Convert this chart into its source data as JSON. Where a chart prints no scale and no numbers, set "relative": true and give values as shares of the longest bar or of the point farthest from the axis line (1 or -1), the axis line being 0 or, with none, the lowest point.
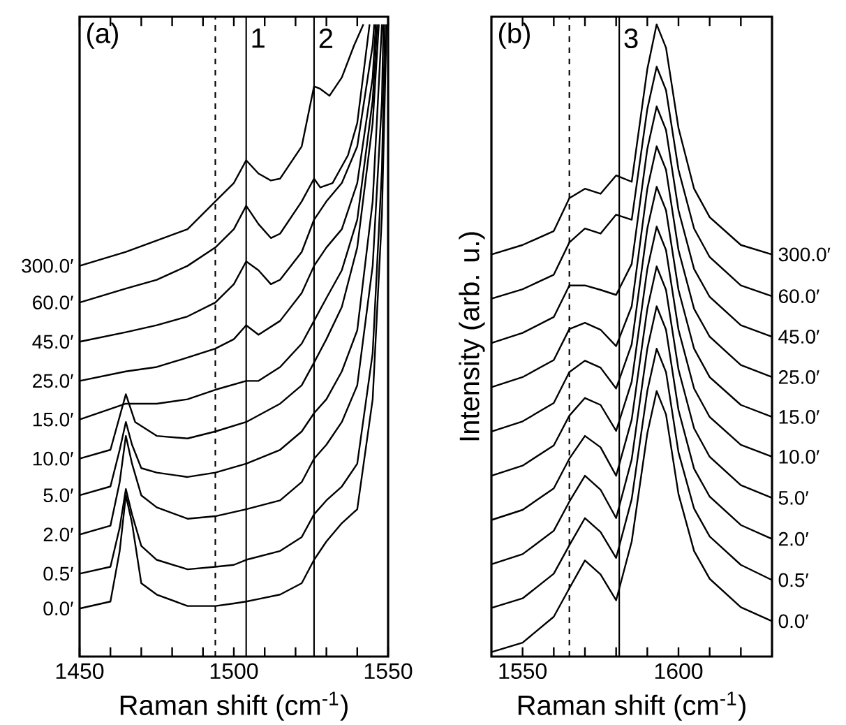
{
  "chart_data": [
    {
      "type": "line",
      "relative": true,
      "xlabel": "Raman shift (cm$^{-1}$)",
      "xlim": [
        1450,
        1550
      ],
      "xticks": [
        1450,
        {
          "value": 1460,
          "label": null
        },
        {
          "value": 1470,
          "label": null
        },
        {
          "value": 1480,
          "label": null
        },
        {
          "value": 1490,
          "label": null
        },
        1500,
        {
          "value": 1510,
          "label": null
        },
        {
          "value": 1520,
          "label": null
        },
        {
          "value": 1530,
          "label": null
        },
        {
          "value": 1540,
          "label": null
        },
        1550
      ],
      "annotations": [
        "(a)",
        {
          "text": "1",
          "x": 1504,
          "y": 1
        },
        {
          "text": "2",
          "x": 1526,
          "y": 1
        }
      ],
      "ref_lines": [
        {
          "axis": "x",
          "value": 1494,
          "line_style": "dashed"
        },
        {
          "axis": "x",
          "value": 1504
        },
        {
          "axis": "x",
          "value": 1526
        }
      ],
      "series": [
        {
          "name": "0.0′",
          "color": "#000000",
          "x": [
            1450,
            1460,
            1463,
            1465,
            1467,
            1470,
            1475,
            1485,
            1494,
            1500,
            1504,
            1508,
            1515,
            1522,
            1526,
            1530,
            1535,
            1540,
            1545,
            1548,
            1549.5
          ],
          "values": [
            0.076,
            0.087,
            0.167,
            0.255,
            0.211,
            0.116,
            0.098,
            0.08,
            0.08,
            0.084,
            0.087,
            0.091,
            0.098,
            0.116,
            0.153,
            0.182,
            0.211,
            0.233,
            0.407,
            0.698,
            1
          ]
        },
        {
          "name": "0.5′",
          "color": "#000000",
          "x": [
            1450,
            1460,
            1463,
            1465,
            1467,
            1470,
            1475,
            1485,
            1494,
            1500,
            1504,
            1515,
            1522,
            1526,
            1530,
            1535,
            1540,
            1545,
            1548,
            1549
          ],
          "values": [
            0.131,
            0.142,
            0.204,
            0.265,
            0.225,
            0.175,
            0.153,
            0.138,
            0.142,
            0.145,
            0.153,
            0.167,
            0.189,
            0.225,
            0.247,
            0.269,
            0.305,
            0.48,
            0.771,
            1
          ]
        },
        {
          "name": "2.0′",
          "color": "#000000",
          "x": [
            1450,
            1460,
            1463,
            1465,
            1467,
            1470,
            1475,
            1485,
            1494,
            1504,
            1515,
            1522,
            1526,
            1530,
            1535,
            1540,
            1545,
            1548,
            1548.5
          ],
          "values": [
            0.193,
            0.207,
            0.276,
            0.349,
            0.305,
            0.255,
            0.236,
            0.218,
            0.222,
            0.233,
            0.247,
            0.276,
            0.313,
            0.335,
            0.371,
            0.429,
            0.618,
            0.88,
            1
          ]
        },
        {
          "name": "5.0′",
          "color": "#000000",
          "x": [
            1450,
            1460,
            1463,
            1465,
            1467,
            1470,
            1475,
            1485,
            1494,
            1504,
            1515,
            1522,
            1526,
            1530,
            1535,
            1540,
            1545,
            1548
          ],
          "values": [
            0.255,
            0.269,
            0.327,
            0.371,
            0.335,
            0.298,
            0.291,
            0.284,
            0.291,
            0.305,
            0.327,
            0.356,
            0.385,
            0.407,
            0.451,
            0.516,
            0.72,
            1
          ]
        },
        {
          "name": "10.0′",
          "color": "#000000",
          "x": [
            1450,
            1460,
            1465,
            1468,
            1475,
            1485,
            1494,
            1504,
            1515,
            1522,
            1526,
            1530,
            1535,
            1540,
            1545,
            1547
          ],
          "values": [
            0.313,
            0.327,
            0.415,
            0.371,
            0.349,
            0.345,
            0.356,
            0.371,
            0.4,
            0.429,
            0.465,
            0.502,
            0.553,
            0.647,
            0.844,
            1
          ]
        },
        {
          "name": "15.0′",
          "color": "#000000",
          "x": [
            1450,
            1465,
            1475,
            1485,
            1494,
            1504,
            1508,
            1515,
            1522,
            1526,
            1530,
            1535,
            1540,
            1545,
            1546.5
          ],
          "values": [
            0.375,
            0.4,
            0.4,
            0.407,
            0.422,
            0.436,
            0.436,
            0.458,
            0.495,
            0.531,
            0.567,
            0.611,
            0.691,
            0.88,
            1
          ]
        },
        {
          "name": "25.0′",
          "color": "#000000",
          "x": [
            1450,
            1465,
            1475,
            1485,
            1494,
            1500,
            1504,
            1508,
            1515,
            1522,
            1526,
            1530,
            1535,
            1540,
            1545,
            1546
          ],
          "values": [
            0.436,
            0.451,
            0.458,
            0.473,
            0.487,
            0.502,
            0.524,
            0.509,
            0.531,
            0.575,
            0.618,
            0.647,
            0.676,
            0.749,
            0.916,
            1
          ]
        },
        {
          "name": "45.0′",
          "color": "#000000",
          "x": [
            1450,
            1465,
            1475,
            1485,
            1494,
            1500,
            1504,
            1508,
            1512,
            1515,
            1522,
            1526,
            1530,
            1535,
            1540,
            1545,
            1545.5
          ],
          "values": [
            0.498,
            0.513,
            0.524,
            0.538,
            0.56,
            0.589,
            0.625,
            0.611,
            0.589,
            0.596,
            0.64,
            0.691,
            0.72,
            0.749,
            0.807,
            0.967,
            1
          ]
        },
        {
          "name": "60.0′",
          "color": "#000000",
          "x": [
            1450,
            1465,
            1475,
            1485,
            1494,
            1500,
            1504,
            1508,
            1512,
            1515,
            1522,
            1526,
            1528,
            1532,
            1537,
            1540,
            1544
          ],
          "values": [
            0.56,
            0.582,
            0.596,
            0.618,
            0.647,
            0.676,
            0.713,
            0.684,
            0.662,
            0.669,
            0.72,
            0.756,
            0.742,
            0.749,
            0.793,
            0.844,
            1
          ]
        },
        {
          "name": "300.0′",
          "color": "#000000",
          "x": [
            1450,
            1465,
            1475,
            1485,
            1494,
            1500,
            1504,
            1508,
            1512,
            1515,
            1522,
            1526,
            1528,
            1531,
            1535,
            1539,
            1542
          ],
          "values": [
            0.618,
            0.64,
            0.658,
            0.676,
            0.72,
            0.749,
            0.785,
            0.764,
            0.753,
            0.756,
            0.807,
            0.902,
            0.898,
            0.887,
            0.916,
            0.967,
            1
          ]
        }
      ]
    },
    {
      "type": "line",
      "relative": true,
      "xlabel": "Raman shift (cm$^{-1}$)",
      "ylabel": "Intensity (arb. u.)",
      "xlim": [
        1540,
        1630
      ],
      "xticks": [
        1550,
        {
          "value": 1560,
          "label": null
        },
        {
          "value": 1570,
          "label": null
        },
        {
          "value": 1580,
          "label": null
        },
        {
          "value": 1590,
          "label": null
        },
        1600,
        {
          "value": 1610,
          "label": null
        },
        {
          "value": 1620,
          "label": null
        }
      ],
      "annotations": [
        "(b)",
        {
          "text": "3",
          "x": 1581,
          "y": 1
        }
      ],
      "ref_lines": [
        {
          "axis": "x",
          "value": 1565,
          "line_style": "dashed"
        },
        {
          "axis": "x",
          "value": 1581
        }
      ],
      "series": [
        {
          "name": "0.0′",
          "color": "#000000",
          "x": [
            1540,
            1550,
            1560,
            1565,
            1570,
            1575,
            1580,
            1585,
            1590,
            1593,
            1596,
            1600,
            1605,
            1610,
            1620,
            1630
          ],
          "values": [
            0.007,
            0.022,
            0.063,
            0.108,
            0.152,
            0.13,
            0.089,
            0.182,
            0.353,
            0.42,
            0.383,
            0.257,
            0.167,
            0.123,
            0.078,
            0.056
          ]
        },
        {
          "name": "0.5′",
          "color": "#000000",
          "x": [
            1540,
            1550,
            1560,
            1565,
            1570,
            1575,
            1580,
            1585,
            1590,
            1593,
            1596,
            1600,
            1605,
            1610,
            1620,
            1630
          ],
          "values": [
            0.077,
            0.092,
            0.131,
            0.176,
            0.219,
            0.197,
            0.156,
            0.249,
            0.42,
            0.487,
            0.45,
            0.323,
            0.234,
            0.19,
            0.145,
            0.121
          ]
        },
        {
          "name": "2.0′",
          "color": "#000000",
          "x": [
            1540,
            1550,
            1560,
            1565,
            1570,
            1575,
            1580,
            1585,
            1590,
            1593,
            1596,
            1600,
            1605,
            1610,
            1620,
            1630
          ],
          "values": [
            0.146,
            0.162,
            0.199,
            0.245,
            0.286,
            0.264,
            0.219,
            0.312,
            0.487,
            0.554,
            0.517,
            0.39,
            0.297,
            0.253,
            0.208,
            0.186
          ]
        },
        {
          "name": "5.0′",
          "color": "#000000",
          "x": [
            1540,
            1550,
            1560,
            1565,
            1570,
            1575,
            1580,
            1585,
            1590,
            1593,
            1596,
            1600,
            1605,
            1610,
            1620,
            1630
          ],
          "values": [
            0.216,
            0.232,
            0.266,
            0.313,
            0.349,
            0.331,
            0.286,
            0.375,
            0.55,
            0.617,
            0.58,
            0.454,
            0.361,
            0.316,
            0.271,
            0.251
          ]
        },
        {
          "name": "10.0′",
          "color": "#000000",
          "x": [
            1540,
            1550,
            1560,
            1565,
            1570,
            1575,
            1580,
            1585,
            1590,
            1593,
            1596,
            1600,
            1605,
            1610,
            1620,
            1630
          ],
          "values": [
            0.286,
            0.302,
            0.334,
            0.381,
            0.409,
            0.398,
            0.357,
            0.435,
            0.613,
            0.68,
            0.643,
            0.517,
            0.424,
            0.379,
            0.335,
            0.316
          ]
        },
        {
          "name": "15.0′",
          "color": "#000000",
          "x": [
            1540,
            1550,
            1560,
            1565,
            1570,
            1575,
            1580,
            1585,
            1590,
            1593,
            1596,
            1600,
            1605,
            1610,
            1620,
            1630
          ],
          "values": [
            0.356,
            0.372,
            0.401,
            0.45,
            0.468,
            0.457,
            0.424,
            0.494,
            0.677,
            0.743,
            0.706,
            0.58,
            0.487,
            0.442,
            0.398,
            0.379
          ]
        },
        {
          "name": "25.0′",
          "color": "#000000",
          "x": [
            1540,
            1550,
            1560,
            1565,
            1570,
            1575,
            1580,
            1585,
            1590,
            1593,
            1596,
            1600,
            1605,
            1610,
            1620,
            1630
          ],
          "values": [
            0.426,
            0.442,
            0.469,
            0.518,
            0.528,
            0.517,
            0.491,
            0.554,
            0.74,
            0.807,
            0.77,
            0.643,
            0.55,
            0.506,
            0.461,
            0.442
          ]
        },
        {
          "name": "45.0′",
          "color": "#000000",
          "x": [
            1540,
            1550,
            1560,
            1565,
            1570,
            1575,
            1580,
            1585,
            1590,
            1593,
            1596,
            1600,
            1605,
            1610,
            1620,
            1630
          ],
          "values": [
            0.496,
            0.512,
            0.537,
            0.587,
            0.587,
            0.58,
            0.572,
            0.621,
            0.803,
            0.87,
            0.833,
            0.706,
            0.613,
            0.569,
            0.524,
            0.506
          ]
        },
        {
          "name": "60.0′",
          "color": "#000000",
          "x": [
            1540,
            1550,
            1560,
            1565,
            1570,
            1575,
            1580,
            1585,
            1590,
            1593,
            1596,
            1600,
            1605,
            1610,
            1620,
            1630
          ],
          "values": [
            0.566,
            0.581,
            0.604,
            0.655,
            0.677,
            0.669,
            0.699,
            0.691,
            0.866,
            0.933,
            0.896,
            0.77,
            0.677,
            0.632,
            0.587,
            0.57
          ]
        },
        {
          "name": "300.0′",
          "color": "#000000",
          "x": [
            1540,
            1550,
            1560,
            1565,
            1570,
            1575,
            1580,
            1585,
            1590,
            1593,
            1596,
            1600,
            1605,
            1610,
            1620,
            1630
          ],
          "values": [
            0.636,
            0.651,
            0.673,
            0.725,
            0.74,
            0.732,
            0.761,
            0.751,
            0.929,
            1.0,
            0.963,
            0.836,
            0.74,
            0.695,
            0.651,
            0.636
          ]
        }
      ]
    }
  ]
}
